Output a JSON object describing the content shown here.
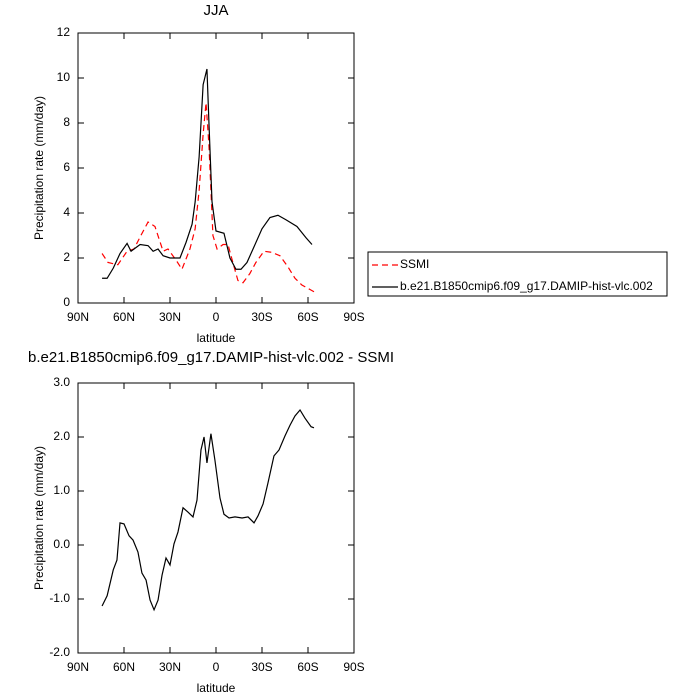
{
  "chart_data": [
    {
      "type": "line",
      "title": "JJA",
      "xlabel": "latitude",
      "ylabel": "Precipitation rate (mm/day)",
      "xlim": [
        90,
        -90
      ],
      "ylim": [
        0,
        12
      ],
      "xticks": [
        {
          "value": 90,
          "label": "90N"
        },
        {
          "value": 60,
          "label": "60N"
        },
        {
          "value": 30,
          "label": "30N"
        },
        0,
        {
          "value": -30,
          "label": "30S"
        },
        {
          "value": -60,
          "label": "60S"
        },
        {
          "value": -90,
          "label": "90S"
        }
      ],
      "yticks": [
        0,
        2,
        4,
        6,
        8,
        10,
        12
      ],
      "legend": "right",
      "series": [
        {
          "name": "SSMI",
          "color": "#ff0000",
          "line_style": "dashed",
          "x": [
            74.3,
            70.4,
            64,
            58,
            53.5,
            49,
            44.3,
            39.8,
            34.5,
            31.3,
            26,
            22.2,
            17,
            13.6,
            11,
            8.4,
            6.5,
            4.6,
            2,
            -0.7,
            -4.6,
            -7.8,
            -11,
            -14.3,
            -17.6,
            -22,
            -26,
            -31.3,
            -36.5,
            -41.7,
            -47,
            -51.5,
            -56,
            -61.3,
            -65.2
          ],
          "values": [
            2.2,
            1.8,
            1.7,
            2.3,
            2.4,
            3.0,
            3.6,
            3.4,
            2.3,
            2.4,
            1.9,
            1.5,
            2.4,
            3.3,
            5.0,
            7.5,
            8.9,
            7.0,
            3.0,
            2.4,
            2.6,
            2.6,
            1.8,
            1.0,
            0.9,
            1.3,
            1.8,
            2.3,
            2.25,
            2.1,
            1.6,
            1.1,
            0.8,
            0.6,
            0.45
          ]
        },
        {
          "name": "b.e21.B1850cmip6.f09_g17.DAMIP-hist-vlc.002",
          "color": "#000000",
          "line_style": "solid",
          "x": [
            74.3,
            71,
            67,
            62.6,
            58,
            55.4,
            49.5,
            44.3,
            41,
            37.8,
            34.5,
            30,
            23.5,
            19.5,
            15.6,
            13.6,
            11,
            8.4,
            5.9,
            4.6,
            2.6,
            0,
            -5.2,
            -9.1,
            -13,
            -16.3,
            -20.2,
            -24.8,
            -30,
            -35.2,
            -40.4,
            -45.6,
            -52.8,
            -58.7,
            -62.6
          ],
          "values": [
            1.1,
            1.1,
            1.55,
            2.2,
            2.65,
            2.3,
            2.6,
            2.55,
            2.3,
            2.4,
            2.1,
            2.0,
            2.0,
            2.7,
            3.5,
            4.5,
            6.5,
            9.7,
            10.4,
            8.0,
            4.5,
            3.2,
            3.1,
            2.0,
            1.5,
            1.5,
            1.8,
            2.5,
            3.3,
            3.8,
            3.9,
            3.7,
            3.4,
            2.9,
            2.6
          ]
        }
      ]
    },
    {
      "type": "line",
      "title": "b.e21.B1850cmip6.f09_g17.DAMIP-hist-vlc.002 - SSMI",
      "xlabel": "latitude",
      "ylabel": "Precipitation rate (mm/day)",
      "xlim": [
        90,
        -90
      ],
      "ylim": [
        -2,
        3
      ],
      "xticks": [
        {
          "value": 90,
          "label": "90N"
        },
        {
          "value": 60,
          "label": "60N"
        },
        {
          "value": 30,
          "label": "30N"
        },
        0,
        {
          "value": -30,
          "label": "30S"
        },
        {
          "value": -60,
          "label": "60S"
        },
        {
          "value": -90,
          "label": "90S"
        }
      ],
      "yticks": [
        {
          "value": -2,
          "label": "-2.0"
        },
        {
          "value": -1,
          "label": "-1.0"
        },
        {
          "value": 0,
          "label": "0.0"
        },
        {
          "value": 1,
          "label": "1.0"
        },
        {
          "value": 2,
          "label": "2.0"
        },
        {
          "value": 3,
          "label": "3.0"
        }
      ],
      "series": [
        {
          "color": "#000000",
          "line_style": "solid",
          "x": [
            74.3,
            71,
            67,
            64.6,
            62.6,
            60,
            56.7,
            54.1,
            50.9,
            48.3,
            45.6,
            43,
            40.4,
            37.8,
            35.2,
            32.6,
            30,
            27.4,
            24.8,
            21.5,
            18.3,
            15,
            12.4,
            9.8,
            7.8,
            5.9,
            3.3,
            0.7,
            -2.6,
            -5.2,
            -8.5,
            -12.4,
            -17,
            -20.9,
            -24.8,
            -27.4,
            -30.7,
            -33.9,
            -37.8,
            -41.1,
            -45,
            -48.3,
            -51.5,
            -54.8,
            -58,
            -62,
            -63.9
          ],
          "values": [
            -1.13,
            -0.94,
            -0.46,
            -0.28,
            0.41,
            0.39,
            0.17,
            0.09,
            -0.13,
            -0.52,
            -0.65,
            -1.02,
            -1.2,
            -1.02,
            -0.56,
            -0.24,
            -0.37,
            0.02,
            0.24,
            0.69,
            0.61,
            0.52,
            0.83,
            1.76,
            2.0,
            1.52,
            2.06,
            1.57,
            0.87,
            0.57,
            0.5,
            0.52,
            0.5,
            0.52,
            0.41,
            0.54,
            0.76,
            1.15,
            1.65,
            1.76,
            2.02,
            2.22,
            2.39,
            2.5,
            2.35,
            2.19,
            2.17
          ]
        }
      ]
    }
  ]
}
